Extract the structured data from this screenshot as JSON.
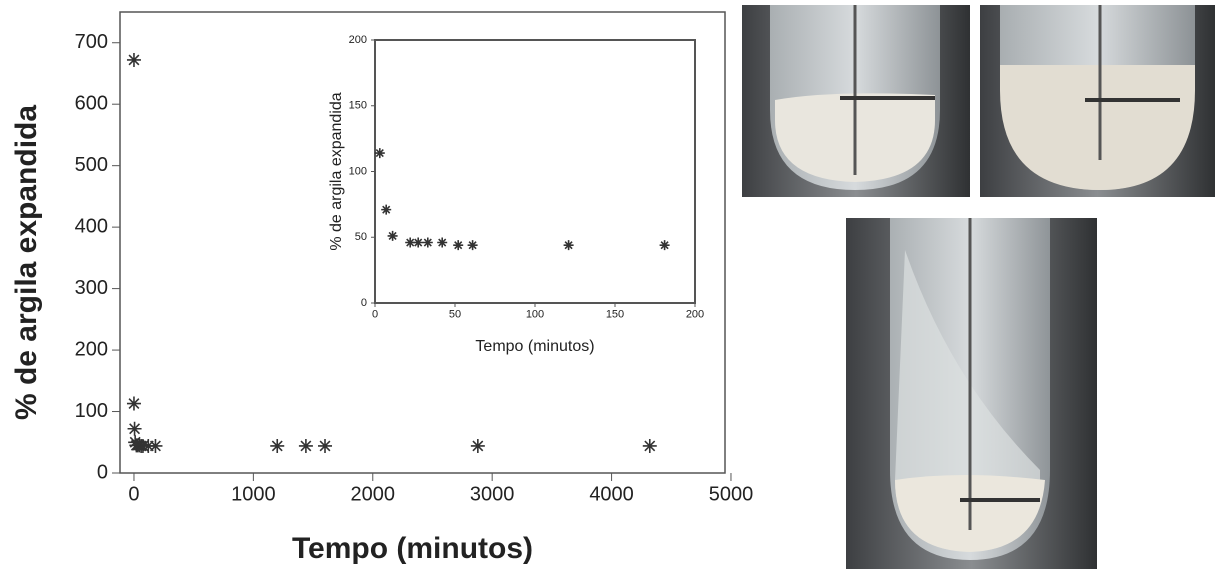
{
  "chart_data": [
    {
      "type": "scatter",
      "x_label": "Tempo (minutos)",
      "y_label": "% de argila expandida",
      "x": [
        0,
        0,
        5,
        10,
        20,
        30,
        45,
        60,
        75,
        120,
        180,
        1200,
        1440,
        1600,
        2880,
        4320
      ],
      "values": [
        672,
        113,
        72,
        50,
        45,
        45,
        45,
        44,
        44,
        44,
        44,
        44,
        44,
        44,
        44,
        44
      ],
      "color": "#333333",
      "xlim": [
        -117,
        4950
      ],
      "ylim": [
        0,
        750
      ],
      "xticks": [
        0,
        1000,
        2000,
        3000,
        4000,
        5000
      ],
      "yticks": [
        0,
        100,
        200,
        300,
        400,
        500,
        600,
        700
      ]
    },
    {
      "type": "scatter",
      "x_label": "Tempo (minutos)",
      "y_label": "% de argila expandida",
      "x": [
        3,
        7,
        11,
        22,
        27,
        33,
        42,
        52,
        61,
        121,
        181
      ],
      "values": [
        114,
        71,
        51,
        46,
        46,
        46,
        46,
        44,
        44,
        44,
        44
      ],
      "color": "#333333",
      "xlim": [
        0,
        200
      ],
      "ylim": [
        0,
        200
      ],
      "xticks": [
        0,
        50,
        100,
        150,
        200
      ],
      "yticks": [
        0,
        50,
        100,
        150,
        200
      ]
    }
  ]
}
